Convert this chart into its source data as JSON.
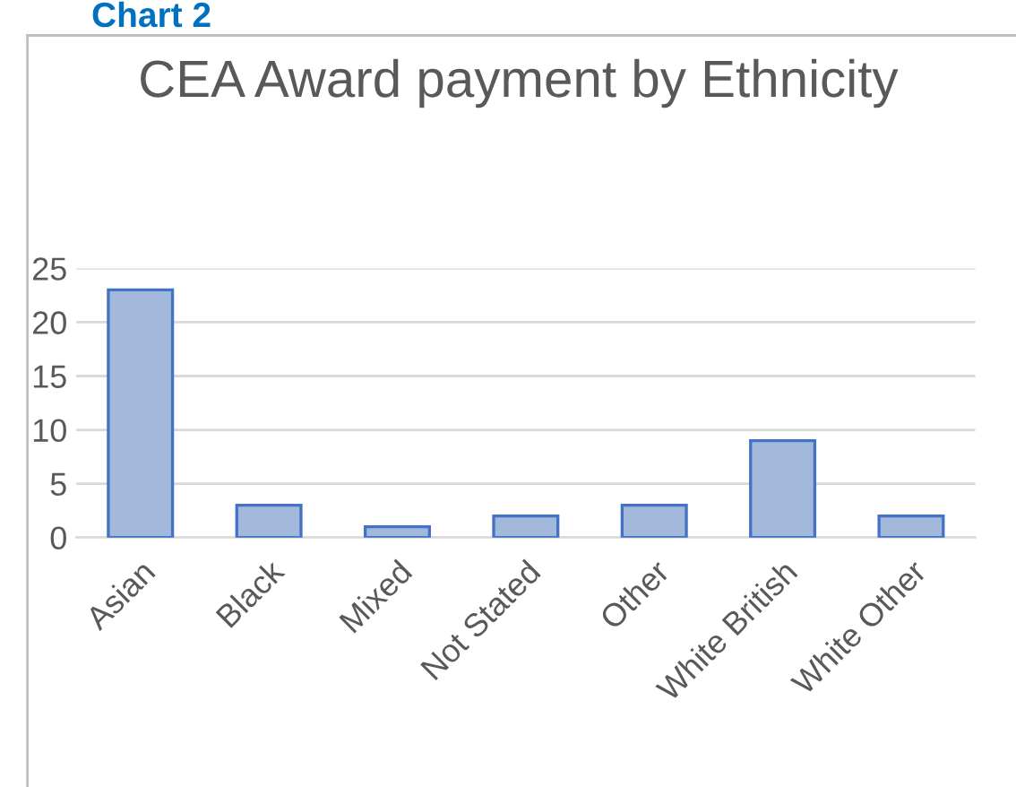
{
  "chart_data": {
    "type": "bar",
    "title": "CEA Award payment by Ethnicity",
    "annotations": [
      "Chart 2"
    ],
    "categories": [
      "Asian",
      "Black",
      "Mixed",
      "Not Stated",
      "Other",
      "White British",
      "White Other"
    ],
    "values": [
      23,
      3,
      1,
      2,
      3,
      9,
      2
    ],
    "color": "#a3b9dc",
    "ylim": [
      0,
      25
    ],
    "yticks": [
      0,
      5,
      10,
      15,
      20,
      25
    ],
    "grid": "y",
    "legend": false
  }
}
